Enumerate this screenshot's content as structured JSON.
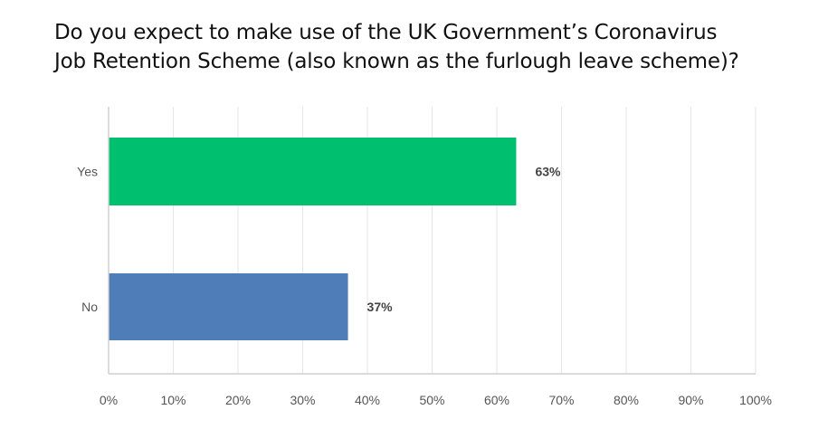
{
  "title_lines": [
    "Do you expect to make use of the UK Government’s Coronavirus",
    "Job Retention Scheme (also known as the furlough leave scheme)?"
  ],
  "chart_data": {
    "type": "bar",
    "orientation": "horizontal",
    "title": "Do you expect to make use of the UK Government’s Coronavirus Job Retention Scheme (also known as the furlough leave scheme)?",
    "categories": [
      "Yes",
      "No"
    ],
    "values": [
      63,
      37
    ],
    "value_labels": [
      "63%",
      "37%"
    ],
    "bar_colors": [
      "#00BF6F",
      "#4F7DB8"
    ],
    "xlim": [
      0,
      100
    ],
    "x_ticks": [
      0,
      10,
      20,
      30,
      40,
      50,
      60,
      70,
      80,
      90,
      100
    ],
    "x_tick_labels": [
      "0%",
      "10%",
      "20%",
      "30%",
      "40%",
      "50%",
      "60%",
      "70%",
      "80%",
      "90%",
      "100%"
    ],
    "grid": "vertical",
    "grid_color": "#E6E6E6",
    "legend": "none"
  }
}
